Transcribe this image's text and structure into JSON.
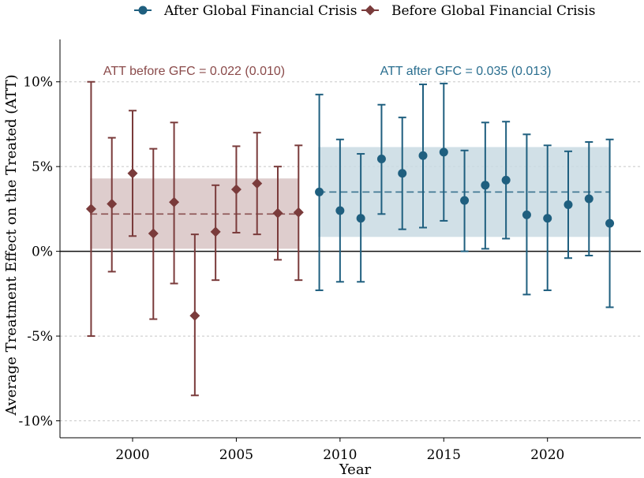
{
  "chart_data": {
    "type": "scatter",
    "xlabel": "Year",
    "ylabel": "Average Treatment Effect on the Treated (ATT)",
    "xlim": [
      1996.5,
      2024.5
    ],
    "ylim": [
      -11,
      12.5
    ],
    "x_ticks": [
      2000,
      2005,
      2010,
      2015,
      2020
    ],
    "y_ticks": [
      {
        "value": 10,
        "label": "10%"
      },
      {
        "value": 5,
        "label": "5%"
      },
      {
        "value": 0,
        "label": "0%"
      },
      {
        "value": -5,
        "label": "-5%"
      },
      {
        "value": -10,
        "label": "-10%"
      }
    ],
    "grid": "horizontal dashed",
    "legend_position": "top-center",
    "legend": [
      {
        "name": "After Global Financial Crisis",
        "marker": "circle",
        "color": "#1f5f7f"
      },
      {
        "name": "Before Global Financial Crisis",
        "marker": "diamond",
        "color": "#7a3b3b"
      }
    ],
    "series": [
      {
        "name": "Before Global Financial Crisis",
        "marker": "diamond",
        "color": "#7a3b3b",
        "band_color": "#d8c4c4",
        "x": [
          1998,
          1999,
          2000,
          2001,
          2002,
          2003,
          2004,
          2005,
          2006,
          2007,
          2008
        ],
        "y": [
          2.5,
          2.8,
          4.6,
          1.05,
          2.9,
          -3.8,
          1.15,
          3.65,
          4.0,
          2.25,
          2.3
        ],
        "lo": [
          -5.0,
          -1.2,
          0.9,
          -4.0,
          -1.9,
          -8.5,
          -1.7,
          1.1,
          1.0,
          -0.5,
          -1.7
        ],
        "hi": [
          10.0,
          6.7,
          8.3,
          6.05,
          7.6,
          1.0,
          3.9,
          6.2,
          7.0,
          5.0,
          6.25
        ],
        "att": 2.2,
        "band": [
          0.15,
          4.3
        ],
        "band_x": [
          1997.95,
          2008.0
        ],
        "annotation": "ATT before GFC = 0.022 (0.010)",
        "annotation_color": "#8a4a4a"
      },
      {
        "name": "After Global Financial Crisis",
        "marker": "circle",
        "color": "#1f5f7f",
        "band_color": "#c9dbe3",
        "x": [
          2009,
          2010,
          2011,
          2012,
          2013,
          2014,
          2015,
          2016,
          2017,
          2018,
          2019,
          2020,
          2021,
          2022,
          2023
        ],
        "y": [
          3.5,
          2.4,
          1.95,
          5.45,
          4.6,
          5.65,
          5.85,
          3.0,
          3.9,
          4.2,
          2.15,
          1.95,
          2.75,
          3.1,
          1.65
        ],
        "lo": [
          -2.3,
          -1.8,
          -1.8,
          2.2,
          1.3,
          1.4,
          1.8,
          0.0,
          0.15,
          0.75,
          -2.55,
          -2.3,
          -0.4,
          -0.25,
          -3.3
        ],
        "hi": [
          9.25,
          6.6,
          5.75,
          8.65,
          7.9,
          9.85,
          9.9,
          5.95,
          7.6,
          7.65,
          6.9,
          6.25,
          5.9,
          6.45,
          6.6
        ],
        "att": 3.5,
        "band": [
          0.85,
          6.15
        ],
        "band_x": [
          2008.95,
          2023.0
        ],
        "annotation": "ATT after GFC = 0.035 (0.013)",
        "annotation_color": "#2a6e8f"
      }
    ]
  }
}
